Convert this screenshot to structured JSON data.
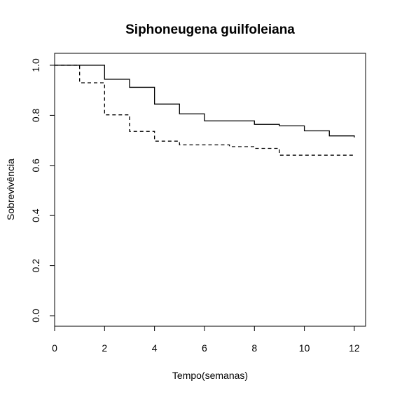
{
  "chart_data": {
    "type": "line",
    "title": "Siphoneugena guilfoleiana",
    "xlabel": "Tempo(semanas)",
    "ylabel": "Sobrevivência",
    "xlim": [
      0,
      12
    ],
    "ylim": [
      0,
      1
    ],
    "x_ticks": [
      "0",
      "2",
      "4",
      "6",
      "8",
      "10",
      "12"
    ],
    "y_ticks": [
      "0.0",
      "0.2",
      "0.4",
      "0.6",
      "0.8",
      "1.0"
    ],
    "grid": false,
    "legend": "none",
    "step": true,
    "series": [
      {
        "line_style": "solid",
        "x": [
          0,
          2,
          3,
          4,
          5,
          6,
          8,
          9,
          10,
          11,
          12
        ],
        "y": [
          1.0,
          0.944,
          0.912,
          0.845,
          0.806,
          0.778,
          0.764,
          0.758,
          0.738,
          0.718,
          0.712
        ]
      },
      {
        "line_style": "dashed",
        "x": [
          0,
          1,
          2,
          3,
          4,
          5,
          7,
          8,
          9,
          12
        ],
        "y": [
          1.0,
          0.93,
          0.802,
          0.736,
          0.697,
          0.682,
          0.675,
          0.668,
          0.641,
          0.641
        ]
      }
    ]
  }
}
